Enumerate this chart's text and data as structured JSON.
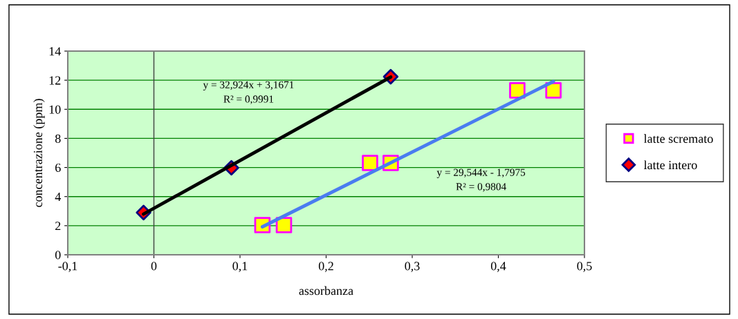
{
  "chart_data": {
    "type": "scatter",
    "xlabel": "assorbanza",
    "ylabel": "concentrazione (ppm)",
    "xlim": [
      -0.1,
      0.5
    ],
    "ylim": [
      0,
      14
    ],
    "xticks": [
      {
        "value": -0.1,
        "label": "-0,1"
      },
      0,
      {
        "value": 0.1,
        "label": "0,1"
      },
      {
        "value": 0.2,
        "label": "0,2"
      },
      {
        "value": 0.3,
        "label": "0,3"
      },
      {
        "value": 0.4,
        "label": "0,4"
      },
      {
        "value": 0.5,
        "label": "0,5"
      }
    ],
    "yticks": [
      0,
      2,
      4,
      6,
      8,
      10,
      12,
      14
    ],
    "grid": "y",
    "legend": "right",
    "series": [
      {
        "name": "latte scremato",
        "marker": "square",
        "color": "#ffff00",
        "x": [
          0.126,
          0.151,
          0.251,
          0.275,
          0.422,
          0.464
        ],
        "values": [
          2.04,
          2.04,
          6.31,
          6.31,
          11.3,
          11.3
        ]
      },
      {
        "name": "latte intero",
        "marker": "diamond",
        "color": "#ff0000",
        "x": [
          -0.012,
          0.09,
          0.275
        ],
        "values": [
          2.9,
          5.98,
          12.24
        ]
      },
      {
        "type": "line",
        "color": "#000000",
        "x": [
          -0.012,
          0.275
        ],
        "values": [
          2.8,
          12.22
        ]
      },
      {
        "type": "line",
        "color": "#4a7cf0",
        "x": [
          0.126,
          0.464
        ],
        "values": [
          1.92,
          11.91
        ]
      }
    ],
    "annotations": [
      "y = 32,924x + 3,1671",
      "R² = 0,9991",
      "y = 29,544x - 1,7975",
      "R² = 0,9804"
    ]
  }
}
